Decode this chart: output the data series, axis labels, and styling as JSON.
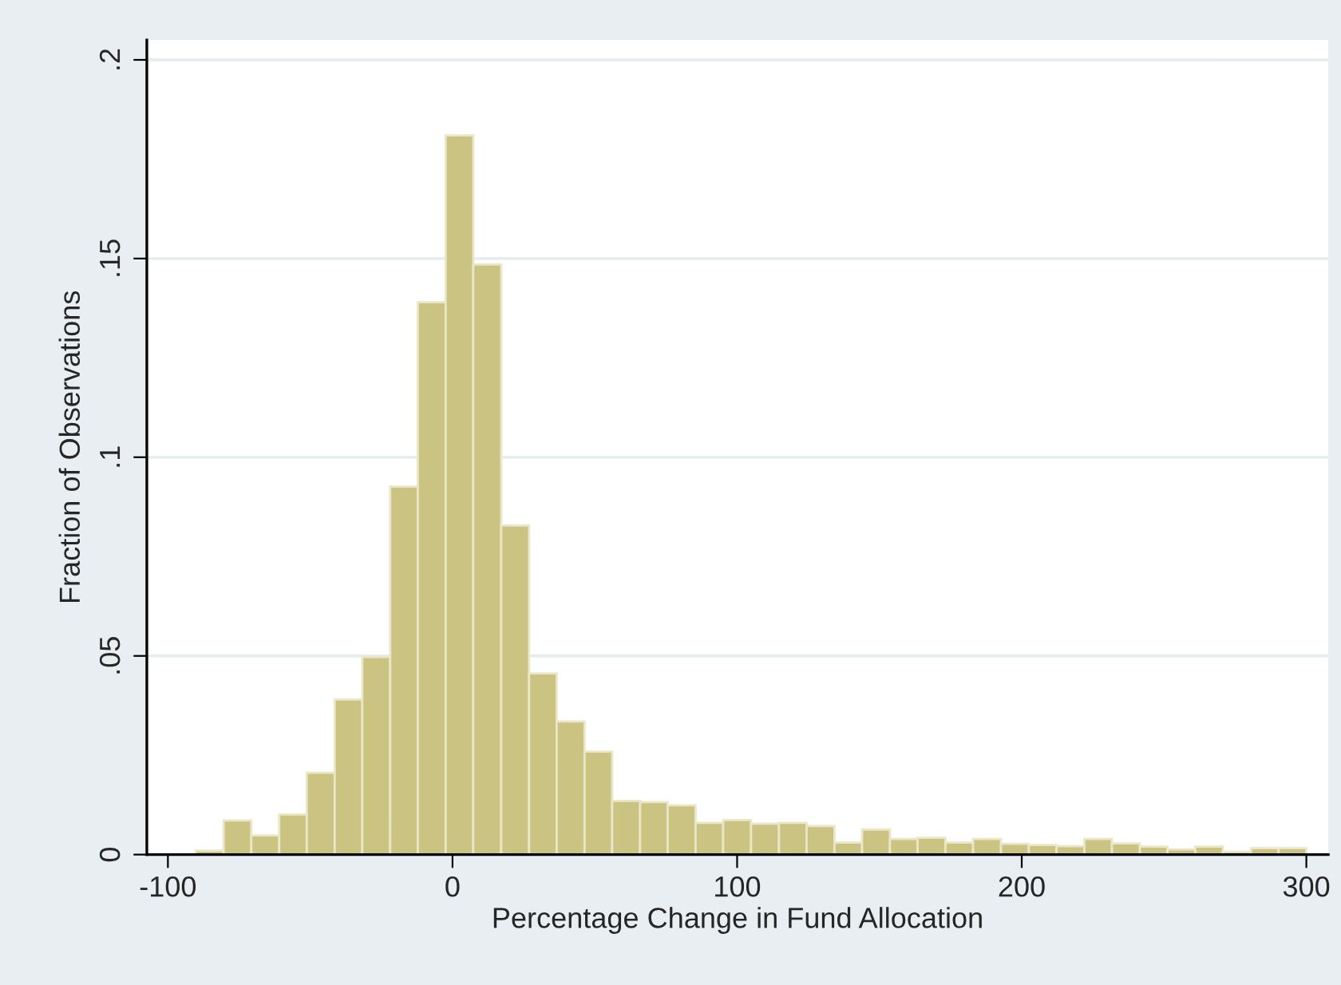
{
  "chart_data": {
    "type": "histogram",
    "xlabel": "Percentage Change in Fund Allocation",
    "ylabel": "Fraction of Observations",
    "bins": [
      -90.2,
      -80.4,
      -70.7,
      -60.9,
      -51.2,
      -41.4,
      -31.7,
      -21.9,
      -12.2,
      -2.4,
      7.3,
      17.1,
      26.9,
      36.6,
      46.4,
      56.1,
      65.9,
      75.6,
      85.4,
      95.1,
      104.9,
      114.7,
      124.4,
      134.2,
      143.9,
      153.7,
      163.4,
      173.2,
      182.9,
      192.7,
      202.5,
      212.2,
      222.0,
      231.7,
      241.5,
      251.2,
      261.0,
      270.7,
      280.5,
      290.2,
      300.0
    ],
    "values": [
      0.001,
      0.0086,
      0.0048,
      0.0101,
      0.0206,
      0.039,
      0.0497,
      0.0926,
      0.139,
      0.181,
      0.1485,
      0.0828,
      0.0456,
      0.0335,
      0.0259,
      0.0135,
      0.0132,
      0.0124,
      0.008,
      0.0087,
      0.0078,
      0.008,
      0.0072,
      0.003,
      0.0063,
      0.0039,
      0.0042,
      0.003,
      0.0039,
      0.0027,
      0.0024,
      0.0021,
      0.0039,
      0.0028,
      0.002,
      0.0013,
      0.002,
      0.0007,
      0.0016,
      0.0016
    ],
    "color": "#cbc382",
    "xlim": [
      -107.4,
      307.7
    ],
    "xticks": [
      -100,
      0,
      100,
      200,
      300
    ],
    "ylim": [
      0,
      0.205
    ],
    "yticks": [
      {
        "value": 0,
        "label": "0"
      },
      {
        "value": 0.05,
        "label": ".05"
      },
      {
        "value": 0.1,
        "label": ".1"
      },
      {
        "value": 0.15,
        "label": ".15"
      },
      {
        "value": 0.2,
        "label": ".2"
      }
    ],
    "grid": "y",
    "legend": false
  }
}
